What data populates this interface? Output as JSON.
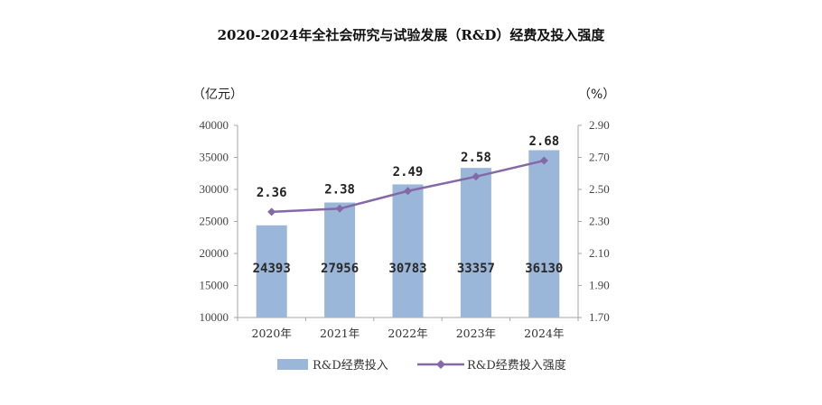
{
  "title": "2020-2024年全社会研究与试验发展（R&D）经费及投入强度",
  "chart_data": {
    "type": "bar",
    "categories": [
      "2020年",
      "2021年",
      "2022年",
      "2023年",
      "2024年"
    ],
    "series": [
      {
        "name": "R&D经费投入",
        "type": "bar",
        "axis": "left",
        "values": [
          24393,
          27956,
          30783,
          33357,
          36130
        ]
      },
      {
        "name": "R&D经费投入强度",
        "type": "line",
        "axis": "right",
        "values": [
          2.36,
          2.38,
          2.49,
          2.58,
          2.68
        ]
      }
    ],
    "y_left": {
      "unit_label": "（亿元）",
      "ylim": [
        10000,
        40000
      ],
      "ticks": [
        "10000",
        "15000",
        "20000",
        "25000",
        "30000",
        "35000",
        "40000"
      ]
    },
    "y_right": {
      "unit_label": "（%）",
      "ylim": [
        1.7,
        2.9
      ],
      "ticks": [
        "1.70",
        "1.90",
        "2.10",
        "2.30",
        "2.50",
        "2.70",
        "2.90"
      ]
    },
    "bar_labels": [
      "24393",
      "27956",
      "30783",
      "33357",
      "36130"
    ],
    "line_labels": [
      "2.36",
      "2.38",
      "2.49",
      "2.58",
      "2.68"
    ],
    "legend_position": "bottom",
    "grid": false,
    "colors": {
      "bar": "#9ab7da",
      "line": "#8468a8",
      "marker": "#8468a8",
      "axis": "#a6a6a6"
    }
  }
}
